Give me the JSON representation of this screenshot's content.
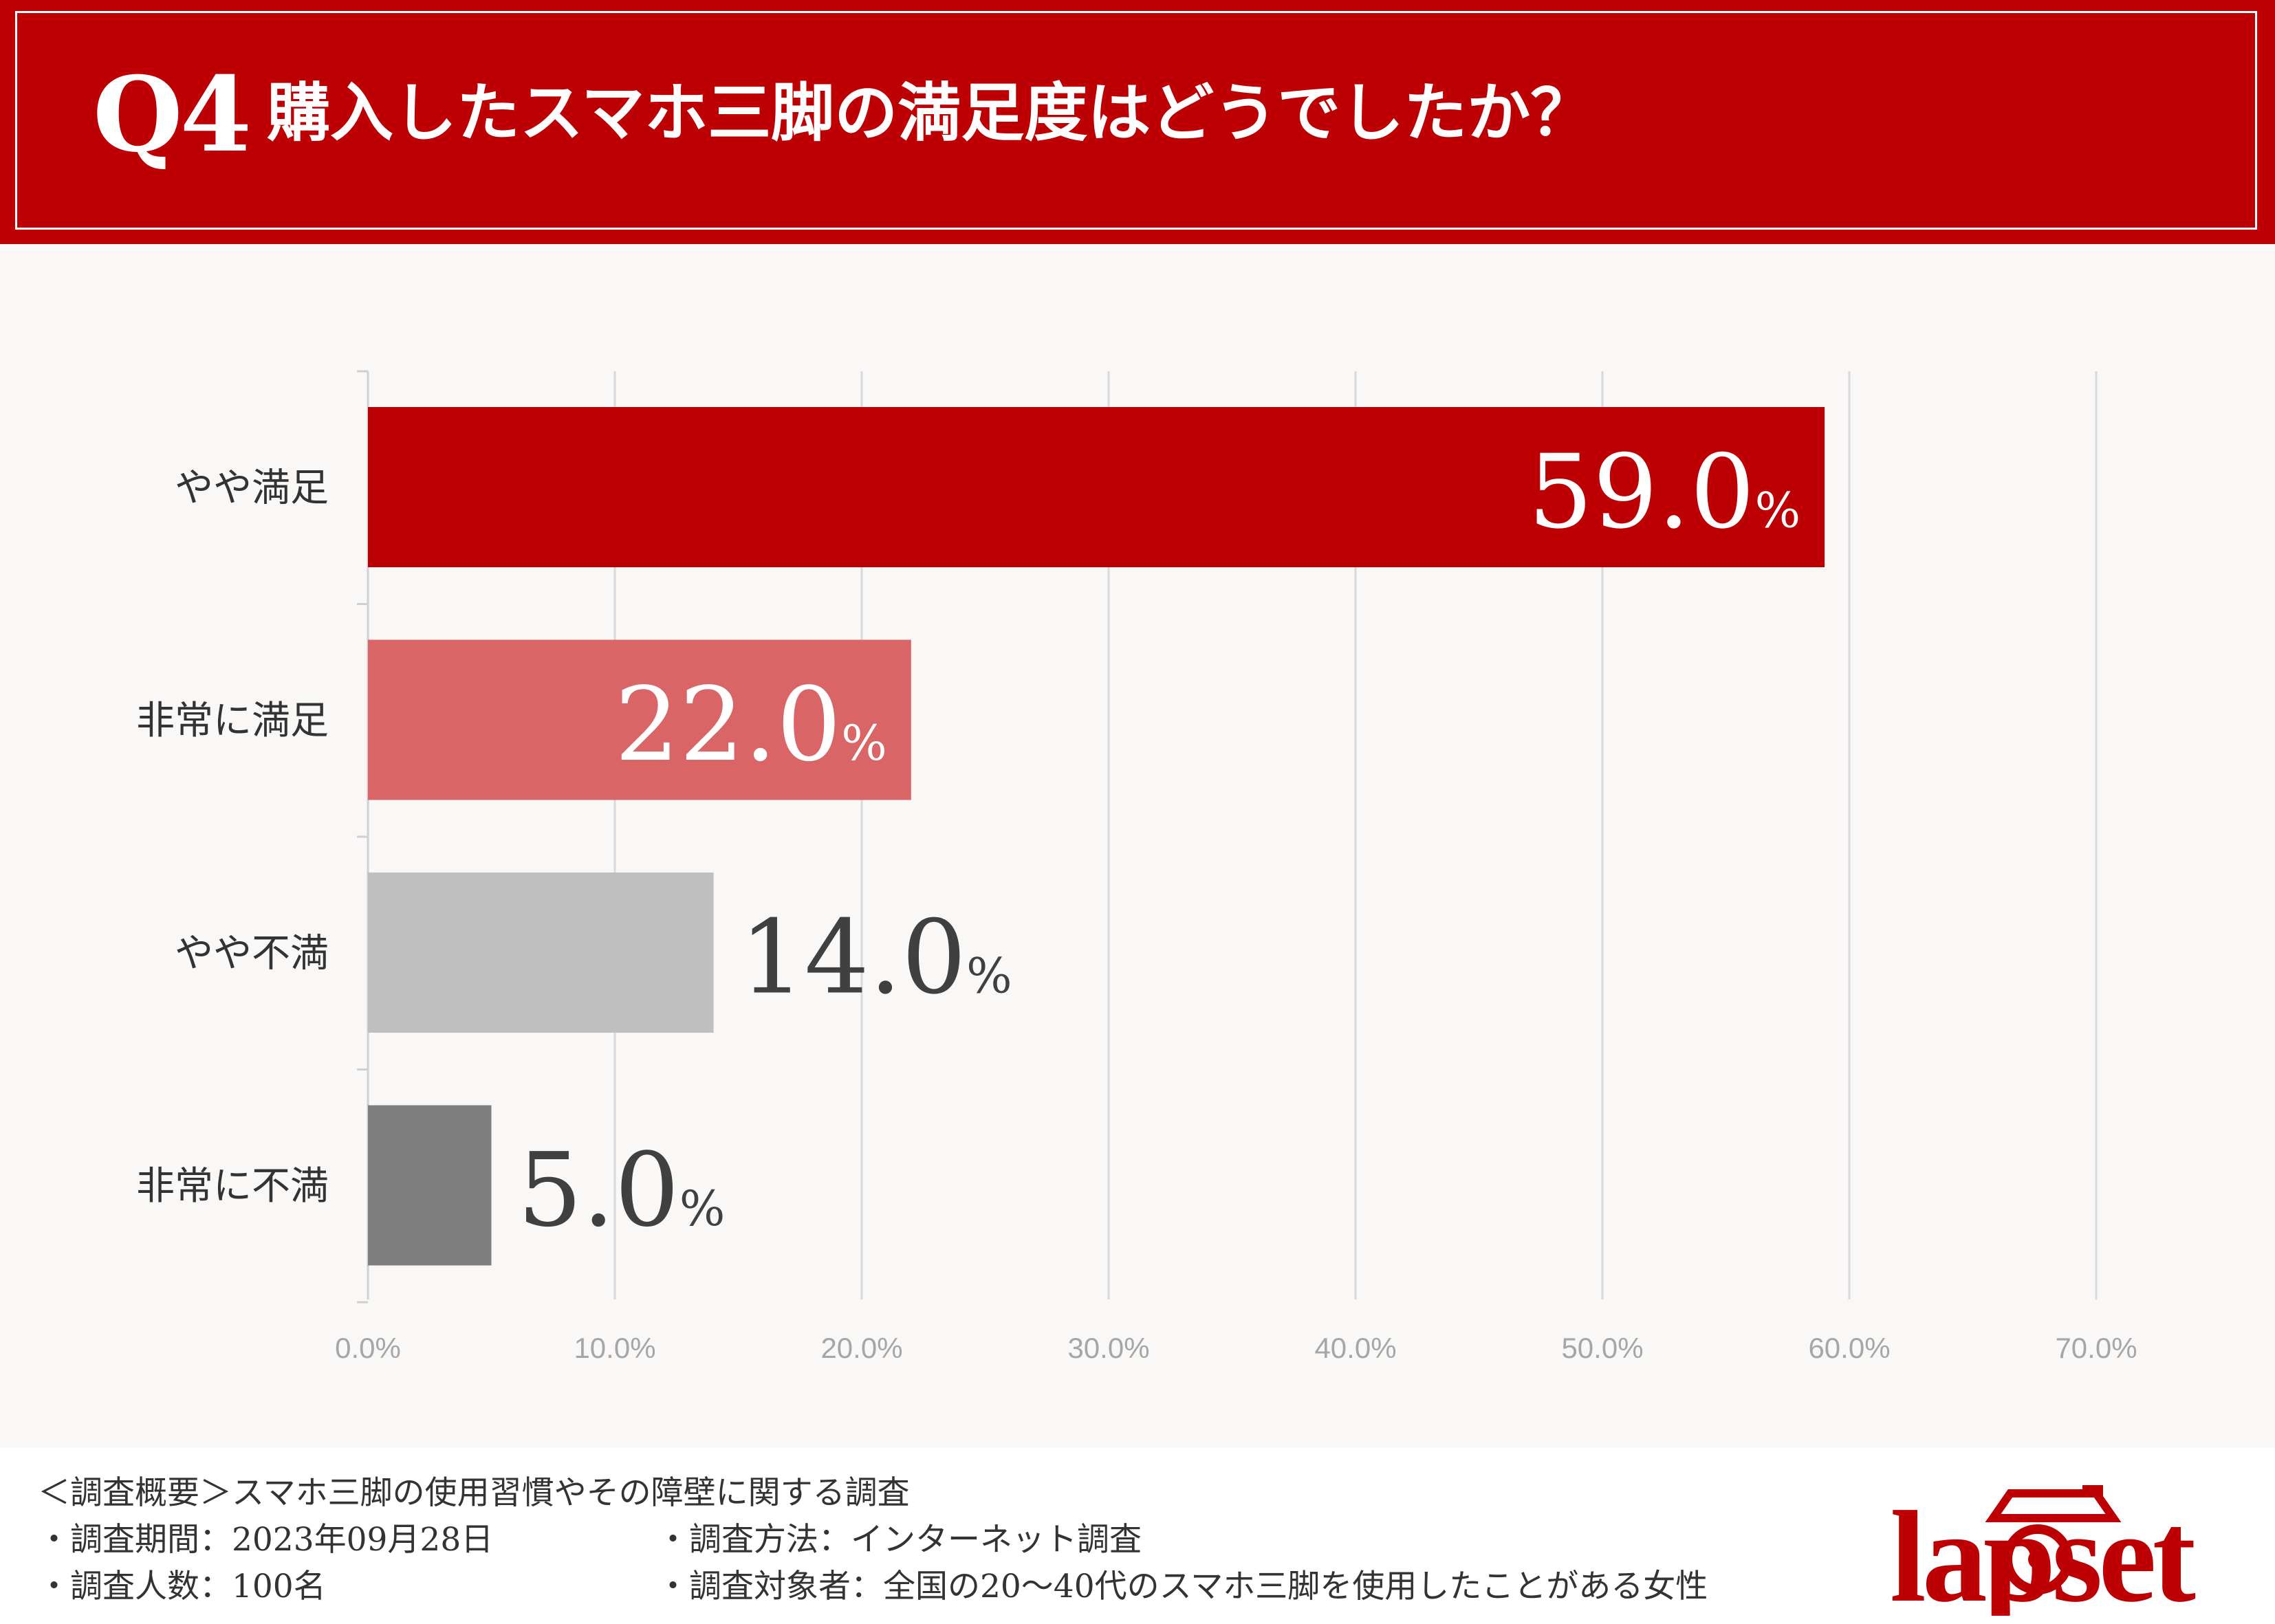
{
  "header": {
    "question_number": "Q4",
    "title": "購入したスマホ三脚の満足度はどうでしたか？"
  },
  "chart_data": {
    "type": "bar",
    "orientation": "horizontal",
    "categories": [
      "やや満足",
      "非常に満足",
      "やや不満",
      "非常に不満"
    ],
    "values": [
      59.0,
      22.0,
      14.0,
      5.0
    ],
    "value_labels": [
      "59.0",
      "22.0",
      "14.0",
      "5.0"
    ],
    "value_unit": "%",
    "bar_colors": [
      "#bc0004",
      "#d96566",
      "#bfbfbf",
      "#7f7f7f"
    ],
    "label_colors": [
      "#ffffff",
      "#ffffff",
      "#404040",
      "#404040"
    ],
    "label_inside": [
      true,
      true,
      false,
      false
    ],
    "x_ticks": [
      "0.0%",
      "10.0%",
      "20.0%",
      "30.0%",
      "40.0%",
      "50.0%",
      "60.0%",
      "70.0%"
    ],
    "xlim": [
      0,
      70
    ],
    "grid": true,
    "title": "",
    "xlabel": "",
    "ylabel": ""
  },
  "footer": {
    "summary": "＜調査概要＞スマホ三脚の使用習慣やその障壁に関する調査",
    "period": "・調査期間：2023年09月28日",
    "count": "・調査人数：100名",
    "method": "・調査方法：インターネット調査",
    "target": "・調査対象者：全国の20〜40代のスマホ三脚を使用したことがある女性"
  },
  "logo": {
    "text": "lapset",
    "color": "#bc0004"
  }
}
